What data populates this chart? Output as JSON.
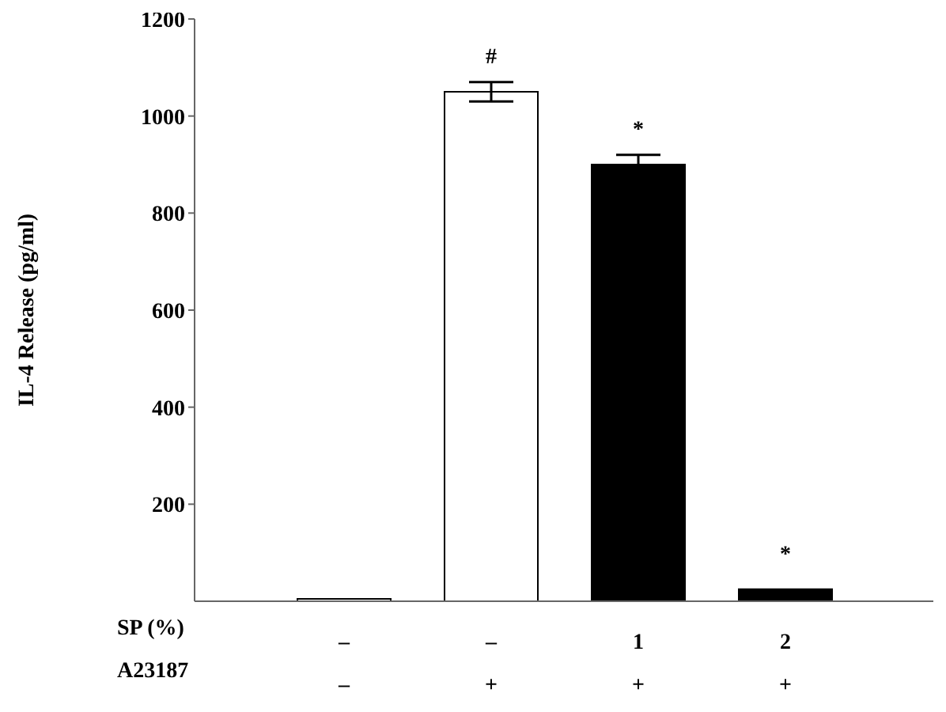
{
  "chart_data": {
    "type": "bar",
    "ylabel": "IL-4 Release (pg/ml)",
    "categories": [
      "–\n–",
      "–\n+",
      "1\n+",
      "2\n+"
    ],
    "values": [
      5,
      1050,
      900,
      25
    ],
    "colors": [
      "#ffffff",
      "#ffffff",
      "#000000",
      "#000000"
    ],
    "errors": [
      null,
      20,
      20,
      null
    ],
    "ylim": [
      0,
      1200
    ],
    "yticks": [
      200,
      400,
      600,
      800,
      1000,
      1200
    ],
    "grid": false,
    "annotations": [
      {
        "text": "#",
        "x": "–\n+",
        "y": 1050
      },
      {
        "text": "*",
        "x": "1\n+",
        "y": 900
      },
      {
        "text": "*",
        "x": "2\n+",
        "y": 25
      },
      "SP (%)",
      "A23187"
    ]
  }
}
